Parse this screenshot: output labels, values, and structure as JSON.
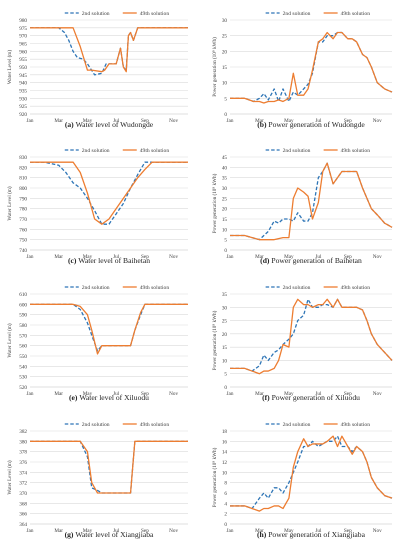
{
  "colors": {
    "solution2": "#2e75b6",
    "solution49": "#ed7d31",
    "grid": "#d9d9d9",
    "axis": "#bfbfbf",
    "text": "#404040"
  },
  "chart_data": [
    {
      "type": "line",
      "caption_letter": "(a)",
      "caption_text": "Water level of Wudongde",
      "ylabel": "Water Level (m)",
      "xlabel": "",
      "x_ticks": [
        "Jan",
        "Mar",
        "May",
        "Jul",
        "Sep",
        "Nov"
      ],
      "ylim": [
        920,
        980
      ],
      "y_step": 5,
      "legend": "top",
      "series": [
        {
          "name": "2nd solution",
          "style": "dashed",
          "x": [
            1,
            2,
            3,
            3.4,
            3.7,
            4,
            4.3,
            4.7,
            5,
            5.5,
            6,
            6.3,
            7,
            7.3,
            7.5,
            7.7,
            7.85,
            8,
            8.2,
            8.5,
            8.7,
            9,
            9.5,
            10,
            11,
            12
          ],
          "y": [
            975,
            975,
            975,
            972,
            967,
            960,
            956,
            955,
            952,
            945,
            946,
            952,
            952,
            962,
            950,
            948,
            970,
            972,
            967,
            975,
            975,
            975,
            975,
            975,
            975,
            975
          ]
        },
        {
          "name": "49th solution",
          "style": "solid",
          "x": [
            1,
            2,
            3,
            4,
            4.5,
            5,
            5.3,
            6,
            6.2,
            6.5,
            7,
            7.3,
            7.5,
            7.7,
            7.85,
            8,
            8.2,
            8.5,
            8.7,
            9,
            9.5,
            10,
            11,
            12
          ],
          "y": [
            975,
            975,
            975,
            975,
            963,
            948,
            948,
            947,
            948,
            952,
            952,
            962,
            950,
            947,
            970,
            972,
            967,
            975,
            975,
            975,
            975,
            975,
            975,
            975
          ]
        }
      ]
    },
    {
      "type": "line",
      "caption_letter": "(b)",
      "caption_text": "Power generation of Wudongde",
      "ylabel": "Power generation (10⁸ kWh)",
      "xlabel": "",
      "x_ticks": [
        "Jan",
        "Mar",
        "May",
        "Jul",
        "Sep",
        "Nov"
      ],
      "ylim": [
        0,
        30
      ],
      "y_step": 5,
      "legend": "top",
      "series": [
        {
          "name": "2nd solution",
          "style": "dashed",
          "x": [
            1,
            1.5,
            2,
            2.3,
            2.6,
            3,
            3.3,
            3.6,
            4,
            4.3,
            4.6,
            5,
            5.3,
            5.6,
            6,
            6.3,
            6.6,
            7,
            7.3,
            7.6,
            8,
            8.3,
            8.6,
            9,
            9.3,
            9.6,
            10,
            10.3,
            10.6,
            11,
            11.5,
            12
          ],
          "y": [
            5,
            5,
            5,
            4.5,
            4,
            5,
            6.5,
            4.5,
            8,
            4,
            8,
            4,
            7,
            6,
            8,
            9.5,
            13,
            23,
            23,
            25,
            25,
            26,
            26,
            24,
            24,
            23,
            19,
            18,
            15,
            10,
            8,
            7
          ]
        },
        {
          "name": "49th solution",
          "style": "solid",
          "x": [
            1,
            1.5,
            2,
            2.3,
            2.6,
            3,
            3.3,
            3.6,
            4,
            4.3,
            4.6,
            5,
            5.3,
            5.6,
            6,
            6.3,
            6.6,
            7,
            7.3,
            7.6,
            8,
            8.3,
            8.6,
            9,
            9.3,
            9.6,
            10,
            10.3,
            10.6,
            11,
            11.5,
            12
          ],
          "y": [
            5,
            5,
            5,
            4.5,
            4,
            4,
            3.5,
            4,
            4,
            4.5,
            4,
            5,
            13,
            6,
            6,
            8,
            14,
            23,
            24,
            26,
            24,
            26,
            26,
            24,
            24,
            23,
            19,
            18,
            15,
            10,
            8,
            7
          ]
        }
      ]
    },
    {
      "type": "line",
      "caption_letter": "(c)",
      "caption_text": "Water level of Baihetan",
      "ylabel": "Water Level (m)",
      "xlabel": "",
      "x_ticks": [
        "Jan",
        "Mar",
        "May",
        "Jul",
        "Sep",
        "Nov"
      ],
      "ylim": [
        740,
        830
      ],
      "y_step": 10,
      "legend": "top",
      "series": [
        {
          "name": "2nd solution",
          "style": "dashed",
          "x": [
            1,
            2,
            3,
            3.5,
            4,
            4.5,
            5,
            5.5,
            6,
            6.5,
            7,
            7.5,
            8,
            8.5,
            9,
            9.5,
            10,
            11,
            12
          ],
          "y": [
            825,
            825,
            822,
            815,
            805,
            800,
            790,
            778,
            765,
            765,
            775,
            785,
            800,
            813,
            825,
            825,
            825,
            825,
            825
          ]
        },
        {
          "name": "49th solution",
          "style": "solid",
          "x": [
            1,
            2,
            3,
            4,
            4.5,
            5,
            5.5,
            6,
            6.5,
            7,
            7.5,
            8,
            8.5,
            9,
            9.5,
            10,
            11,
            12
          ],
          "y": [
            825,
            825,
            825,
            825,
            815,
            795,
            770,
            765,
            770,
            780,
            790,
            800,
            810,
            818,
            825,
            825,
            825,
            825
          ]
        }
      ]
    },
    {
      "type": "line",
      "caption_letter": "(d)",
      "caption_text": "Power generation of Baihetan",
      "ylabel": "Power generation (10⁸ kWh)",
      "xlabel": "",
      "x_ticks": [
        "Jan",
        "Mar",
        "May",
        "Jul",
        "Sep",
        "Nov"
      ],
      "ylim": [
        0,
        45
      ],
      "y_step": 5,
      "legend": "top",
      "series": [
        {
          "name": "2nd solution",
          "style": "dashed",
          "x": [
            1,
            1.5,
            2,
            2.5,
            3,
            3.3,
            3.6,
            4,
            4.3,
            4.6,
            5,
            5.3,
            5.6,
            6,
            6.3,
            6.6,
            7,
            7.3,
            7.6,
            8,
            8.3,
            8.6,
            9,
            9.3,
            9.6,
            10,
            10.3,
            10.6,
            11,
            11.5,
            12
          ],
          "y": [
            7,
            7,
            7,
            6,
            5,
            7,
            9,
            14,
            13,
            15,
            15,
            14,
            18,
            14,
            14,
            18,
            35,
            38,
            42,
            32,
            35,
            38,
            38,
            38,
            38,
            30,
            25,
            20,
            17,
            13,
            11
          ]
        },
        {
          "name": "49th solution",
          "style": "solid",
          "x": [
            1,
            1.5,
            2,
            2.5,
            3,
            3.3,
            3.6,
            4,
            4.3,
            4.6,
            5,
            5.3,
            5.6,
            6,
            6.3,
            6.6,
            7,
            7.3,
            7.6,
            8,
            8.3,
            8.6,
            9,
            9.3,
            9.6,
            10,
            10.3,
            10.6,
            11,
            11.5,
            12
          ],
          "y": [
            7,
            7,
            7,
            6,
            5,
            5,
            5,
            5,
            5.5,
            6,
            6,
            25,
            30,
            28,
            26,
            15,
            23,
            38,
            42,
            32,
            35,
            38,
            38,
            38,
            38,
            30,
            25,
            20,
            17,
            13,
            11
          ]
        }
      ]
    },
    {
      "type": "line",
      "caption_letter": "(e)",
      "caption_text": "Water level of Xiluodu",
      "ylabel": "Water Level (m)",
      "xlabel": "",
      "x_ticks": [
        "Jan",
        "Mar",
        "May",
        "Jul",
        "Sep",
        "Nov"
      ],
      "ylim": [
        520,
        610
      ],
      "y_step": 10,
      "legend": "top",
      "series": [
        {
          "name": "2nd solution",
          "style": "dashed",
          "x": [
            1,
            2,
            3,
            4,
            4.5,
            5,
            5.3,
            5.7,
            6,
            6.5,
            7,
            7.5,
            8,
            8.3,
            8.7,
            9,
            9.3,
            10,
            11,
            12
          ],
          "y": [
            600,
            600,
            600,
            600,
            595,
            582,
            570,
            555,
            560,
            560,
            560,
            560,
            560,
            575,
            590,
            600,
            600,
            600,
            600,
            600
          ]
        },
        {
          "name": "49th solution",
          "style": "solid",
          "x": [
            1,
            2,
            3,
            4,
            4.5,
            5,
            5.3,
            5.7,
            6,
            6.5,
            7,
            7.5,
            8,
            8.3,
            8.7,
            9,
            9.3,
            10,
            11,
            12
          ],
          "y": [
            600,
            600,
            600,
            600,
            598,
            590,
            575,
            552,
            560,
            560,
            560,
            560,
            560,
            575,
            592,
            600,
            600,
            600,
            600,
            600
          ]
        }
      ]
    },
    {
      "type": "line",
      "caption_letter": "(f)",
      "caption_text": "Power generation of Xiluodu",
      "ylabel": "Power generation (10⁸ kWh)",
      "xlabel": "",
      "x_ticks": [
        "Jan",
        "Mar",
        "May",
        "Jul",
        "Sep",
        "Nov"
      ],
      "ylim": [
        0,
        35
      ],
      "y_step": 5,
      "legend": "top",
      "series": [
        {
          "name": "2nd solution",
          "style": "dashed",
          "x": [
            1,
            1.5,
            2,
            2.5,
            3,
            3.3,
            3.6,
            4,
            4.3,
            4.6,
            5,
            5.3,
            5.6,
            6,
            6.3,
            6.6,
            7,
            7.3,
            7.6,
            8,
            8.3,
            8.6,
            9,
            9.3,
            9.6,
            10,
            10.3,
            10.6,
            11,
            11.5,
            12
          ],
          "y": [
            7,
            7,
            7,
            6,
            8,
            12,
            10,
            13,
            14,
            16,
            18,
            20,
            25,
            27,
            33,
            30,
            30,
            31,
            31,
            30,
            33,
            30,
            30,
            30,
            30,
            29,
            25,
            20,
            16,
            13,
            10
          ]
        },
        {
          "name": "49th solution",
          "style": "solid",
          "x": [
            1,
            1.5,
            2,
            2.5,
            3,
            3.3,
            3.6,
            4,
            4.3,
            4.6,
            5,
            5.3,
            5.6,
            6,
            6.3,
            6.6,
            7,
            7.3,
            7.6,
            8,
            8.3,
            8.6,
            9,
            9.3,
            9.6,
            10,
            10.3,
            10.6,
            11,
            11.5,
            12
          ],
          "y": [
            7,
            7,
            7,
            6,
            5,
            6,
            6,
            7,
            10,
            16,
            15,
            30,
            33,
            31,
            31,
            30,
            31,
            31,
            33,
            30,
            33,
            30,
            30,
            30,
            30,
            29,
            25,
            20,
            16,
            13,
            10
          ]
        }
      ]
    },
    {
      "type": "line",
      "caption_letter": "(g)",
      "caption_text": "Water level of Xiangjiaba",
      "ylabel": "Water Level (m)",
      "xlabel": "",
      "x_ticks": [
        "Jan",
        "Mar",
        "May",
        "Jul",
        "Sep",
        "Nov"
      ],
      "ylim": [
        364,
        382
      ],
      "y_step": 2,
      "legend": "top",
      "series": [
        {
          "name": "2nd solution",
          "style": "dashed",
          "x": [
            1,
            2,
            3,
            4,
            4.5,
            5,
            5.3,
            5.7,
            6,
            6.5,
            7,
            7.5,
            8,
            8.3,
            8.7,
            9,
            10,
            11,
            12
          ],
          "y": [
            380,
            380,
            380,
            380,
            380,
            377,
            371,
            370.5,
            370,
            370,
            370,
            370,
            370,
            380,
            380,
            380,
            380,
            380,
            380
          ]
        },
        {
          "name": "49th solution",
          "style": "solid",
          "x": [
            1,
            2,
            3,
            4,
            4.5,
            5,
            5.3,
            5.7,
            6,
            6.5,
            7,
            7.5,
            8,
            8.3,
            8.7,
            9,
            10,
            11,
            12
          ],
          "y": [
            380,
            380,
            380,
            380,
            380,
            378,
            372,
            370,
            370,
            370,
            370,
            370,
            370,
            380,
            380,
            380,
            380,
            380,
            380
          ]
        }
      ]
    },
    {
      "type": "line",
      "caption_letter": "(h)",
      "caption_text": "Power generation of Xiangjiaba",
      "ylabel": "Power generation (10⁸ kWh)",
      "xlabel": "",
      "x_ticks": [
        "Jan",
        "Mar",
        "May",
        "Jul",
        "Sep",
        "Nov"
      ],
      "ylim": [
        0,
        18
      ],
      "y_step": 2,
      "legend": "top",
      "series": [
        {
          "name": "2nd solution",
          "style": "dashed",
          "x": [
            1,
            1.5,
            2,
            2.5,
            3,
            3.3,
            3.6,
            4,
            4.3,
            4.6,
            5,
            5.3,
            5.6,
            6,
            6.3,
            6.6,
            7,
            7.3,
            7.6,
            8,
            8.3,
            8.6,
            9,
            9.3,
            9.6,
            10,
            10.3,
            10.6,
            11,
            11.5,
            12
          ],
          "y": [
            3.5,
            3.5,
            3.5,
            3,
            5,
            6,
            5,
            7,
            7,
            6,
            8,
            10,
            12,
            15,
            15,
            16,
            15,
            15.5,
            16,
            16,
            17,
            15,
            15,
            14,
            15,
            14,
            12,
            9,
            7,
            5.5,
            5
          ]
        },
        {
          "name": "49th solution",
          "style": "solid",
          "x": [
            1,
            1.5,
            2,
            2.5,
            3,
            3.3,
            3.6,
            4,
            4.3,
            4.6,
            5,
            5.3,
            5.6,
            6,
            6.3,
            6.6,
            7,
            7.3,
            7.6,
            8,
            8.3,
            8.6,
            9,
            9.3,
            9.6,
            10,
            10.3,
            10.6,
            11,
            11.5,
            12
          ],
          "y": [
            3.5,
            3.5,
            3.5,
            3,
            2.5,
            3,
            3,
            3.5,
            3.5,
            3,
            5,
            11,
            14,
            16.5,
            15,
            15.5,
            15.5,
            15.5,
            16,
            17,
            15,
            17,
            15,
            13.5,
            15,
            14,
            12,
            9,
            7,
            5.5,
            5
          ]
        }
      ]
    }
  ]
}
